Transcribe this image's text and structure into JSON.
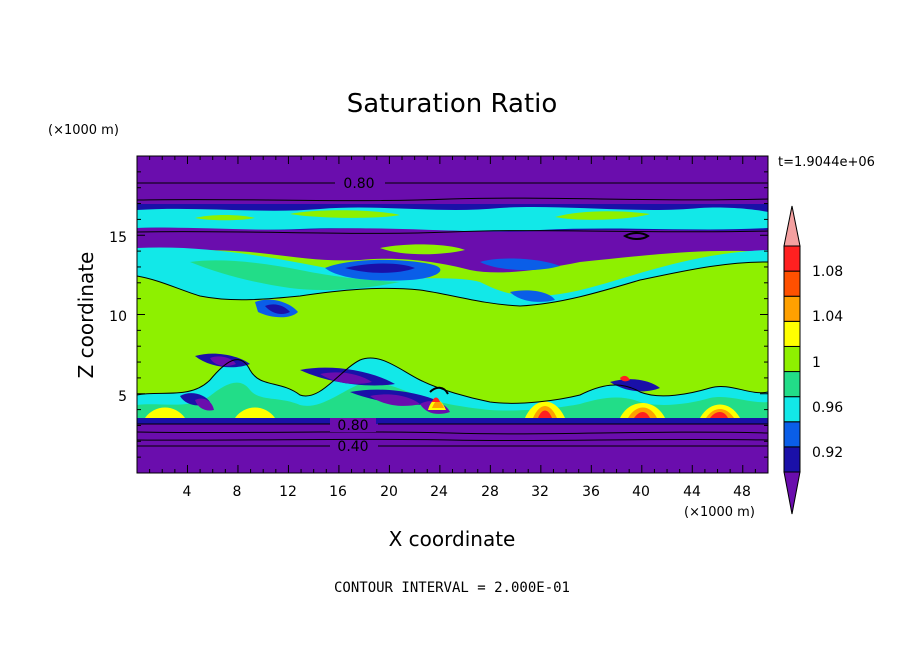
{
  "chart_data": {
    "type": "contour",
    "title": "Saturation Ratio",
    "xlabel": "X coordinate",
    "ylabel": "Z coordinate",
    "x_units": "(×1000 m)",
    "y_units": "(×1000 m)",
    "time_label": "t=1.9044e+06",
    "footer": "CONTOUR INTERVAL = 2.000E-01",
    "xlim": [
      0,
      50
    ],
    "ylim": [
      0,
      20
    ],
    "x_ticks": [
      "4",
      "8",
      "12",
      "16",
      "20",
      "24",
      "28",
      "32",
      "36",
      "40",
      "44",
      "48"
    ],
    "y_ticks": [
      "5",
      "10",
      "15"
    ],
    "contour_labels": [
      "0.80",
      "0.80",
      "0.40"
    ],
    "colorbar": {
      "labels": [
        "1.08",
        "1.04",
        "1",
        "0.96",
        "0.92"
      ],
      "levels": [
        0.9,
        0.92,
        0.94,
        0.96,
        0.98,
        1.0,
        1.02,
        1.04,
        1.06,
        1.08,
        1.1
      ],
      "colors": [
        "#6a0dad",
        "#1a10a8",
        "#0a5ee8",
        "#12e8e8",
        "#22dd88",
        "#8ef000",
        "#ffff00",
        "#ffa000",
        "#ff5000",
        "#ff2020",
        "#f4a0a0"
      ]
    },
    "colors": {
      "low": "#6a0dad",
      "mid": "#8ef000",
      "high": "#ff2020"
    }
  }
}
